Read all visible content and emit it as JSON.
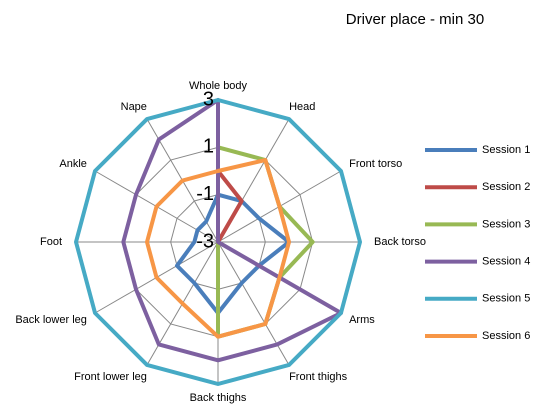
{
  "chart_data": {
    "type": "radar",
    "title": "Driver place - min 30",
    "categories": [
      "Whole body",
      "Head",
      "Front torso",
      "Back torso",
      "Arms",
      "Front thighs",
      "Back thighs",
      "Front lower leg",
      "Back lower leg",
      "Foot",
      "Ankle",
      "Nape"
    ],
    "ylim": [
      -3,
      3
    ],
    "yticks": [
      -3,
      -1,
      1,
      3
    ],
    "grid": true,
    "legend": "right",
    "series": [
      {
        "name": "Session 1",
        "color": "#4a7ebb",
        "values": [
          -1,
          -1,
          -1,
          0,
          -1,
          -1,
          0,
          -1,
          -1,
          -2,
          -2,
          -2
        ]
      },
      {
        "name": "Session 2",
        "color": "#be4b48",
        "values": [
          0,
          -1,
          -3,
          -3,
          -3,
          -3,
          -3,
          -3,
          -3,
          -3,
          -3,
          -3
        ]
      },
      {
        "name": "Session 3",
        "color": "#98b954",
        "values": [
          1,
          1,
          0,
          1,
          0,
          1,
          1,
          -3,
          -3,
          -3,
          -3,
          -3
        ]
      },
      {
        "name": "Session 4",
        "color": "#7d60a0",
        "values": [
          3,
          -3,
          -3,
          -3,
          3,
          2,
          2,
          2,
          1,
          1,
          1,
          2
        ]
      },
      {
        "name": "Session 5",
        "color": "#46aac5",
        "values": [
          3,
          3,
          3,
          3,
          3,
          3,
          3,
          3,
          3,
          3,
          3,
          3
        ]
      },
      {
        "name": "Session 6",
        "color": "#f79646",
        "values": [
          0,
          1,
          0,
          0,
          0,
          1,
          1,
          0,
          0,
          0,
          0,
          0
        ]
      }
    ]
  }
}
